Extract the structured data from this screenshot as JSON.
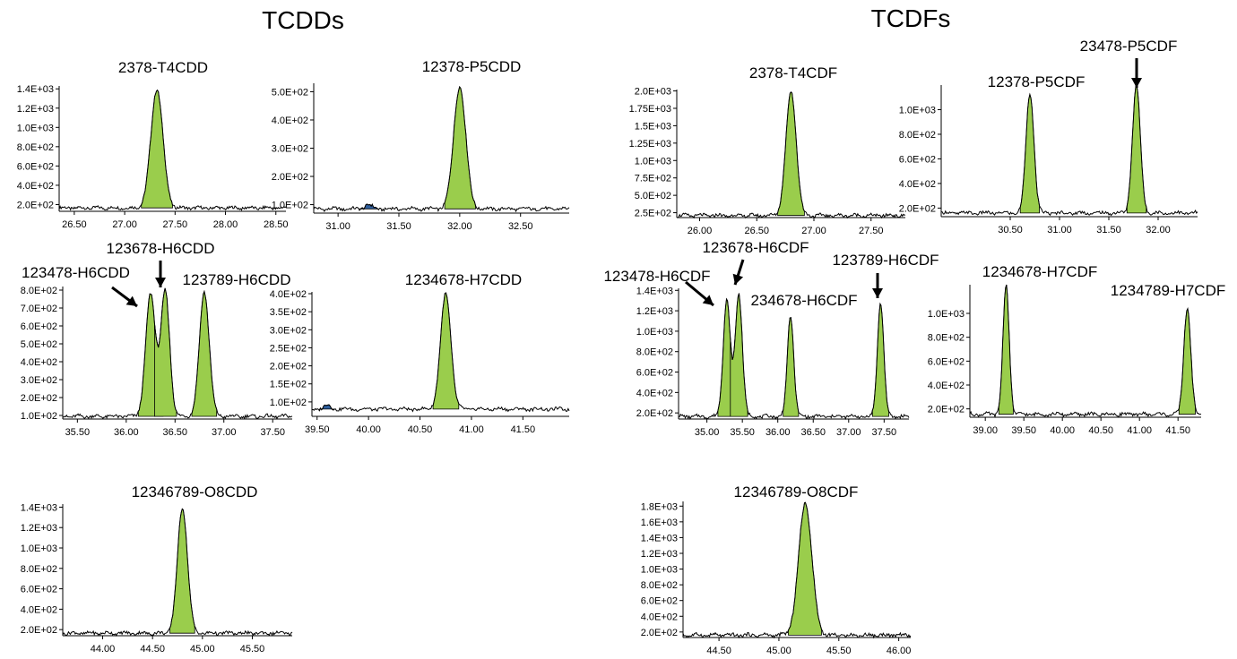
{
  "sections": [
    {
      "title": "TCDDs"
    },
    {
      "title": "TCDFs"
    }
  ],
  "colors": {
    "peak_fill": "#9acd4c",
    "minor_peak_fill": "#2e5f9e",
    "line": "#000000"
  },
  "chart_data": [
    {
      "type": "line",
      "title": "2378-T4CDD",
      "xlim": [
        26.35,
        28.6
      ],
      "ylim": [
        130,
        1430
      ],
      "xticks": [
        "26.50",
        "27.00",
        "27.50",
        "28.00",
        "28.50"
      ],
      "yticks": [
        "2.0E+02",
        "4.0E+02",
        "6.0E+02",
        "8.0E+02",
        "1.0E+03",
        "1.2E+03",
        "1.4E+03"
      ],
      "series": [
        {
          "baseline": 165,
          "peaks": [
            {
              "rt": 27.32,
              "height": 1400,
              "width": 0.06,
              "fill": "peak"
            }
          ]
        }
      ],
      "annotations": []
    },
    {
      "type": "line",
      "title": "12378-P5CDD",
      "xlim": [
        30.8,
        32.9
      ],
      "ylim": [
        70,
        530
      ],
      "xticks": [
        "31.00",
        "31.50",
        "32.00",
        "32.50"
      ],
      "yticks": [
        "1.0E+02",
        "2.0E+02",
        "3.0E+02",
        "4.0E+02",
        "5.0E+02"
      ],
      "series": [
        {
          "baseline": 85,
          "peaks": [
            {
              "rt": 32.0,
              "height": 520,
              "width": 0.05,
              "fill": "peak"
            },
            {
              "rt": 31.25,
              "height": 100,
              "width": 0.03,
              "fill": "minor"
            }
          ]
        }
      ],
      "annotations": []
    },
    {
      "type": "line",
      "title": "",
      "xlim": [
        35.35,
        37.7
      ],
      "ylim": [
        80,
        820
      ],
      "xticks": [
        "35.50",
        "36.00",
        "36.50",
        "37.00",
        "37.50"
      ],
      "yticks": [
        "1.0E+02",
        "2.0E+02",
        "3.0E+02",
        "4.0E+02",
        "5.0E+02",
        "6.0E+02",
        "7.0E+02",
        "8.0E+02"
      ],
      "series": [
        {
          "baseline": 95,
          "peaks": [
            {
              "rt": 36.25,
              "height": 780,
              "width": 0.05,
              "fill": "peak"
            },
            {
              "rt": 36.4,
              "height": 790,
              "width": 0.045,
              "fill": "peak"
            },
            {
              "rt": 36.8,
              "height": 790,
              "width": 0.05,
              "fill": "peak"
            }
          ]
        }
      ],
      "annotations": [
        {
          "label": "123478-H6CDD",
          "rt": 36.25
        },
        {
          "label": "123678-H6CDD",
          "rt": 36.4
        },
        {
          "label": "123789-H6CDD",
          "rt": 36.8
        }
      ]
    },
    {
      "type": "line",
      "title": "1234678-H7CDD",
      "xlim": [
        39.45,
        41.95
      ],
      "ylim": [
        60,
        405
      ],
      "xticks": [
        "39.50",
        "40.00",
        "40.50",
        "41.00",
        "41.50"
      ],
      "yticks": [
        "1.0E+02",
        "1.5E+02",
        "2.0E+02",
        "2.5E+02",
        "3.0E+02",
        "3.5E+02",
        "4.0E+02"
      ],
      "series": [
        {
          "baseline": 80,
          "peaks": [
            {
              "rt": 40.75,
              "height": 400,
              "width": 0.05,
              "fill": "peak"
            },
            {
              "rt": 39.6,
              "height": 92,
              "width": 0.03,
              "fill": "minor"
            }
          ]
        }
      ],
      "annotations": []
    },
    {
      "type": "line",
      "title": "12346789-O8CDD",
      "xlim": [
        43.6,
        45.9
      ],
      "ylim": [
        140,
        1430
      ],
      "xticks": [
        "44.00",
        "44.50",
        "45.00",
        "45.50"
      ],
      "yticks": [
        "2.0E+02",
        "4.0E+02",
        "6.0E+02",
        "8.0E+02",
        "1.0E+03",
        "1.2E+03",
        "1.4E+03"
      ],
      "series": [
        {
          "baseline": 165,
          "peaks": [
            {
              "rt": 44.8,
              "height": 1400,
              "width": 0.05,
              "fill": "peak"
            }
          ]
        }
      ],
      "annotations": []
    },
    {
      "type": "line",
      "title": "2378-T4CDF",
      "xlim": [
        25.8,
        27.8
      ],
      "ylim": [
        180,
        2020
      ],
      "xticks": [
        "26.00",
        "26.50",
        "27.00",
        "27.50"
      ],
      "yticks": [
        "2.5E+02",
        "5.0E+02",
        "7.5E+02",
        "1.0E+03",
        "1.25E+03",
        "1.5E+03",
        "1.75E+03",
        "2.0E+03"
      ],
      "series": [
        {
          "baseline": 210,
          "peaks": [
            {
              "rt": 26.8,
              "height": 2000,
              "width": 0.045,
              "fill": "peak"
            }
          ]
        }
      ],
      "annotations": []
    },
    {
      "type": "line",
      "title": "",
      "xlim": [
        29.8,
        32.4
      ],
      "ylim": [
        130,
        1200
      ],
      "xticks": [
        "30.50",
        "31.00",
        "31.50",
        "32.00"
      ],
      "yticks": [
        "2.0E+02",
        "4.0E+02",
        "6.0E+02",
        "8.0E+02",
        "1.0E+03"
      ],
      "series": [
        {
          "baseline": 160,
          "peaks": [
            {
              "rt": 30.7,
              "height": 1140,
              "width": 0.04,
              "fill": "peak"
            },
            {
              "rt": 31.78,
              "height": 1200,
              "width": 0.04,
              "fill": "peak"
            }
          ]
        }
      ],
      "annotations": [
        {
          "label": "12378-P5CDF",
          "rt": 30.7
        },
        {
          "label": "23478-P5CDF",
          "rt": 31.78
        }
      ]
    },
    {
      "type": "line",
      "title": "",
      "xlim": [
        34.6,
        37.85
      ],
      "ylim": [
        140,
        1420
      ],
      "xticks": [
        "35.00",
        "35.50",
        "36.00",
        "36.50",
        "37.00",
        "37.50"
      ],
      "yticks": [
        "2.0E+02",
        "4.0E+02",
        "6.0E+02",
        "8.0E+02",
        "1.0E+03",
        "1.2E+03",
        "1.4E+03"
      ],
      "series": [
        {
          "baseline": 165,
          "peaks": [
            {
              "rt": 35.28,
              "height": 1310,
              "width": 0.05,
              "fill": "peak"
            },
            {
              "rt": 35.45,
              "height": 1370,
              "width": 0.05,
              "fill": "peak"
            },
            {
              "rt": 36.18,
              "height": 1150,
              "width": 0.045,
              "fill": "peak"
            },
            {
              "rt": 37.45,
              "height": 1280,
              "width": 0.045,
              "fill": "peak"
            }
          ]
        }
      ],
      "annotations": [
        {
          "label": "123478-H6CDF",
          "rt": 35.28
        },
        {
          "label": "123678-H6CDF",
          "rt": 35.45
        },
        {
          "label": "234678-H6CDF",
          "rt": 36.18
        },
        {
          "label": "123789-H6CDF",
          "rt": 37.45
        }
      ]
    },
    {
      "type": "line",
      "title": "",
      "xlim": [
        38.8,
        41.8
      ],
      "ylim": [
        130,
        1240
      ],
      "xticks": [
        "39.00",
        "39.50",
        "40.00",
        "40.50",
        "41.00",
        "41.50"
      ],
      "yticks": [
        "2.0E+02",
        "4.0E+02",
        "6.0E+02",
        "8.0E+02",
        "1.0E+03"
      ],
      "series": [
        {
          "baseline": 155,
          "peaks": [
            {
              "rt": 39.27,
              "height": 1240,
              "width": 0.04,
              "fill": "peak"
            },
            {
              "rt": 41.62,
              "height": 1050,
              "width": 0.045,
              "fill": "peak"
            }
          ]
        }
      ],
      "annotations": [
        {
          "label": "1234678-H7CDF",
          "rt": 39.27
        },
        {
          "label": "1234789-H7CDF",
          "rt": 41.62
        }
      ]
    },
    {
      "type": "line",
      "title": "12346789-O8CDF",
      "xlim": [
        44.2,
        46.1
      ],
      "ylim": [
        130,
        1860
      ],
      "xticks": [
        "44.50",
        "45.00",
        "45.50",
        "46.00"
      ],
      "yticks": [
        "2.0E+02",
        "4.0E+02",
        "6.0E+02",
        "8.0E+02",
        "1.0E+03",
        "1.2E+03",
        "1.4E+03",
        "1.6E+03",
        "1.8E+03"
      ],
      "series": [
        {
          "baseline": 160,
          "peaks": [
            {
              "rt": 45.22,
              "height": 1840,
              "width": 0.055,
              "fill": "peak"
            }
          ]
        }
      ],
      "annotations": []
    }
  ]
}
